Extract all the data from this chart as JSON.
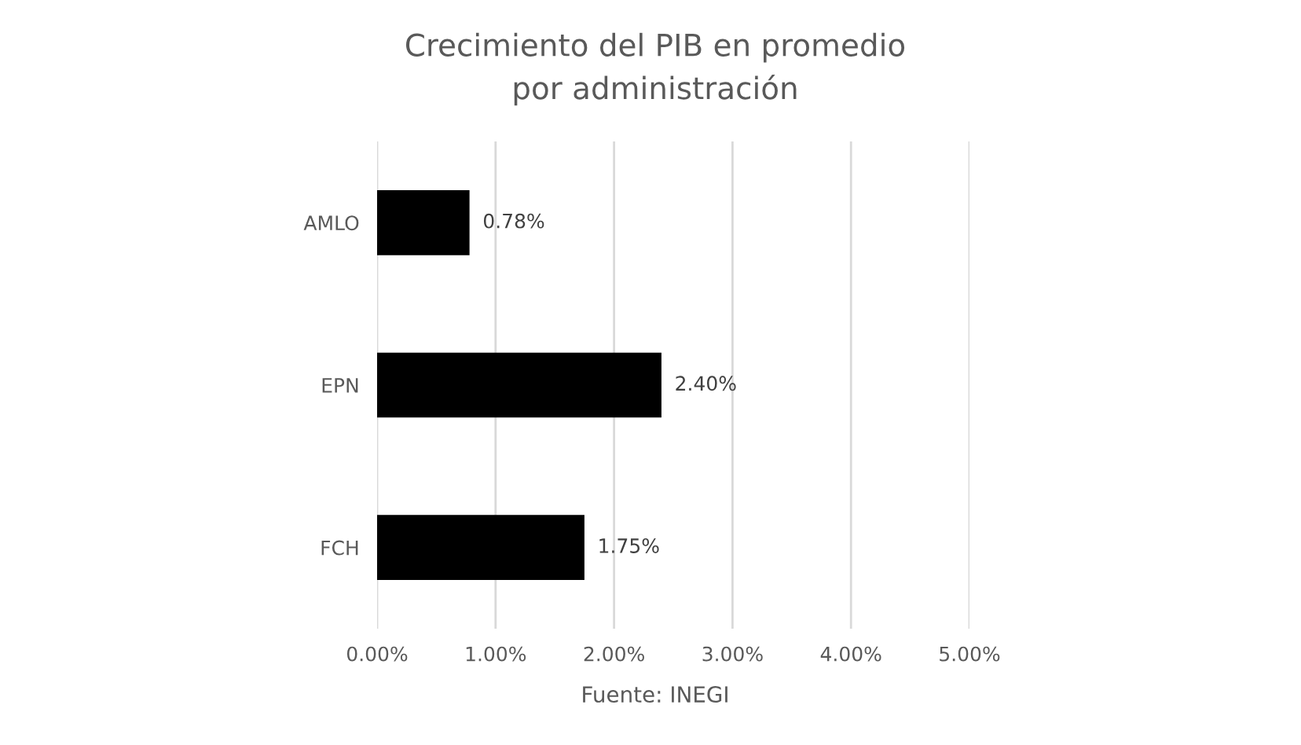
{
  "chart_data": {
    "type": "bar",
    "orientation": "horizontal",
    "title": "Crecimiento del PIB en promedio\npor administración",
    "categories": [
      "AMLO",
      "EPN",
      "FCH"
    ],
    "values": [
      0.78,
      2.4,
      1.75
    ],
    "color": "#000000",
    "value_labels": [
      "0.78%",
      "2.40%",
      "1.75%"
    ],
    "xlim": [
      0,
      5
    ],
    "xticks": [
      {
        "value": 0,
        "label": "0.00%"
      },
      {
        "value": 1,
        "label": "1.00%"
      },
      {
        "value": 2,
        "label": "2.00%"
      },
      {
        "value": 3,
        "label": "3.00%"
      },
      {
        "value": 4,
        "label": "4.00%"
      },
      {
        "value": 5,
        "label": "5.00%"
      }
    ],
    "grid": "x",
    "annotations": [
      "Fuente: INEGI"
    ]
  }
}
